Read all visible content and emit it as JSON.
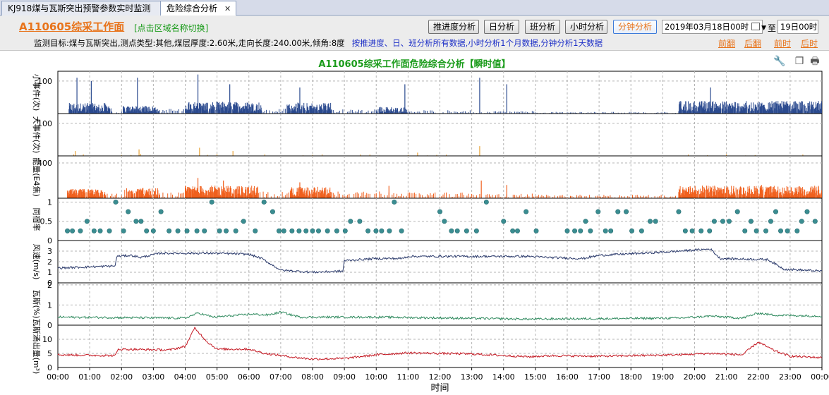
{
  "tabs": [
    {
      "label": "KJ918煤与瓦斯突出预警参数实时监测",
      "active": false
    },
    {
      "label": "危险综合分析",
      "active": true,
      "close": "✕"
    }
  ],
  "header": {
    "face_title": "A110605综采工作面",
    "switch_hint": "[点击区域名称切换]",
    "info": "监测目标:煤与瓦斯突出,测点类型:其他,煤层厚度:2.60米,走向长度:240.00米,倾角:8度",
    "info_note": "按推进度、日、班分析所有数据,小时分析1个月数据,分钟分析1天数据",
    "buttons": [
      "推进度分析",
      "日分析",
      "班分析",
      "小时分析",
      "分钟分析"
    ],
    "active_button": "分钟分析",
    "date_from": "2019年03月18日00时",
    "to_label": "至",
    "date_to": "19日00时",
    "links": [
      "前翻",
      "后翻",
      "前时",
      "后时"
    ]
  },
  "chart_title": "A110605综采工作面危险综合分析【瞬时值】",
  "chart_data": {
    "type": "line",
    "xlabel": "时间",
    "x_ticks": [
      "00:00",
      "01:00",
      "02:00",
      "03:00",
      "04:00",
      "05:00",
      "06:00",
      "07:00",
      "08:00",
      "09:00",
      "10:00",
      "11:00",
      "12:00",
      "13:00",
      "14:00",
      "15:00",
      "16:00",
      "17:00",
      "18:00",
      "19:00",
      "20:00",
      "21:00",
      "22:00",
      "23:00",
      "00:00"
    ],
    "panels": [
      {
        "ylabel": "小事件(次)",
        "type": "bar",
        "ylim": [
          0,
          130
        ],
        "yticks": [
          100
        ],
        "color": "#2b4a8f",
        "segments": [
          [
            0.35,
            1.7,
            25,
            "dense"
          ],
          [
            1.7,
            2.05,
            5,
            "sparse"
          ],
          [
            2.05,
            3.2,
            18,
            "dense"
          ],
          [
            3.2,
            4.0,
            12,
            "sparse"
          ],
          [
            4.0,
            6.4,
            28,
            "dense"
          ],
          [
            6.4,
            7.2,
            12,
            "sparse"
          ],
          [
            7.2,
            8.6,
            26,
            "dense"
          ],
          [
            8.6,
            10.0,
            10,
            "sparse"
          ],
          [
            10.0,
            11.0,
            16,
            "dense"
          ],
          [
            11.0,
            13.0,
            8,
            "sparse"
          ],
          [
            13.0,
            15.0,
            6,
            "sparse"
          ],
          [
            15.0,
            19.5,
            4,
            "sparse"
          ],
          [
            19.5,
            24.0,
            30,
            "dense"
          ]
        ],
        "spikes": [
          [
            0.6,
            110
          ],
          [
            1.05,
            100
          ],
          [
            2.5,
            110
          ],
          [
            4.4,
            120
          ],
          [
            5.4,
            90
          ],
          [
            7.6,
            80
          ],
          [
            10.9,
            90
          ],
          [
            13.25,
            110
          ],
          [
            14.1,
            90
          ],
          [
            20.5,
            80
          ]
        ]
      },
      {
        "ylabel": "大事件(次)",
        "type": "bar",
        "ylim": [
          0,
          130
        ],
        "yticks": [
          100
        ],
        "color": "#e8a33a",
        "segments": [
          [
            0.5,
            2.0,
            4,
            "rare"
          ],
          [
            2.0,
            6.5,
            5,
            "rare"
          ],
          [
            6.5,
            11.0,
            4,
            "rare"
          ],
          [
            11.0,
            13.5,
            3,
            "rare"
          ],
          [
            19.5,
            24.0,
            4,
            "rare"
          ]
        ],
        "spikes": [
          [
            2.55,
            20
          ],
          [
            4.45,
            25
          ],
          [
            5.5,
            15
          ],
          [
            13.25,
            30
          ],
          [
            0.55,
            15
          ],
          [
            11.3,
            10
          ]
        ]
      },
      {
        "ylabel": "能量(E4焦)",
        "type": "bar",
        "ylim": [
          0,
          480
        ],
        "yticks": [
          400
        ],
        "color": "#f0601e",
        "segments": [
          [
            0.3,
            1.5,
            80,
            "dense"
          ],
          [
            1.5,
            2.1,
            40,
            "sparse"
          ],
          [
            2.1,
            3.2,
            90,
            "dense"
          ],
          [
            3.2,
            4.0,
            50,
            "sparse"
          ],
          [
            4.0,
            6.3,
            110,
            "dense"
          ],
          [
            6.3,
            7.3,
            60,
            "sparse"
          ],
          [
            7.3,
            8.6,
            100,
            "dense"
          ],
          [
            8.6,
            10.5,
            60,
            "sparse"
          ],
          [
            10.5,
            13.0,
            50,
            "sparse"
          ],
          [
            13.0,
            15.0,
            40,
            "sparse"
          ],
          [
            15.0,
            19.5,
            30,
            "sparse"
          ],
          [
            19.5,
            24.0,
            110,
            "dense"
          ]
        ],
        "spikes": [
          [
            4.4,
            230
          ],
          [
            5.2,
            200
          ],
          [
            7.6,
            180
          ],
          [
            13.3,
            200
          ],
          [
            14.1,
            150
          ],
          [
            10.4,
            140
          ],
          [
            22.1,
            150
          ]
        ]
      },
      {
        "ylabel": "同宿率",
        "type": "scatter",
        "ylim": [
          0,
          1.1
        ],
        "yticks": [
          0,
          0.5,
          1
        ],
        "color": "#3a8d91"
      },
      {
        "ylabel": "风速(m/s)",
        "type": "line",
        "ylim": [
          0,
          4
        ],
        "yticks": [
          0,
          1,
          2,
          3
        ],
        "color": "#2b3a6b",
        "knots": [
          [
            0,
            1.4
          ],
          [
            1.8,
            1.6
          ],
          [
            1.85,
            2.5
          ],
          [
            2.3,
            2.6
          ],
          [
            2.6,
            2.4
          ],
          [
            3.2,
            2.8
          ],
          [
            5.0,
            2.8
          ],
          [
            6.0,
            2.7
          ],
          [
            6.4,
            2.3
          ],
          [
            7.0,
            1.2
          ],
          [
            8.0,
            1.0
          ],
          [
            8.95,
            1.1
          ],
          [
            9.0,
            2.1
          ],
          [
            10.0,
            2.3
          ],
          [
            10.8,
            2.3
          ],
          [
            11.0,
            2.5
          ],
          [
            14.8,
            2.5
          ],
          [
            15.4,
            2.4
          ],
          [
            16.5,
            2.3
          ],
          [
            17.0,
            2.6
          ],
          [
            19.0,
            2.9
          ],
          [
            20.5,
            3.2
          ],
          [
            20.8,
            2.3
          ],
          [
            22.3,
            2.2
          ],
          [
            22.8,
            1.3
          ],
          [
            24.0,
            1.1
          ]
        ]
      },
      {
        "ylabel": "瓦斯(%)",
        "type": "line",
        "ylim": [
          0,
          2.1
        ],
        "yticks": [
          0,
          1,
          2
        ],
        "color": "#2f8a5e",
        "knots": [
          [
            0,
            0.4
          ],
          [
            4.0,
            0.35
          ],
          [
            4.4,
            0.6
          ],
          [
            4.9,
            0.4
          ],
          [
            6.1,
            0.55
          ],
          [
            6.6,
            0.5
          ],
          [
            7.0,
            0.65
          ],
          [
            7.6,
            0.4
          ],
          [
            10.0,
            0.4
          ],
          [
            14.8,
            0.3
          ],
          [
            19.5,
            0.35
          ],
          [
            20.5,
            0.45
          ],
          [
            21.5,
            0.35
          ],
          [
            22.0,
            0.6
          ],
          [
            22.5,
            0.5
          ],
          [
            24.0,
            0.45
          ]
        ]
      },
      {
        "ylabel": "瓦斯涌出量(m³)",
        "type": "line",
        "ylim": [
          0,
          15
        ],
        "yticks": [
          0,
          5,
          10
        ],
        "color": "#c41a24",
        "knots": [
          [
            0,
            4.5
          ],
          [
            1.8,
            4.2
          ],
          [
            1.9,
            6.5
          ],
          [
            3.5,
            6.2
          ],
          [
            4.0,
            7.5
          ],
          [
            4.3,
            14.0
          ],
          [
            4.7,
            9.0
          ],
          [
            5.0,
            6.5
          ],
          [
            6.0,
            6.5
          ],
          [
            6.5,
            5.0
          ],
          [
            7.5,
            3.5
          ],
          [
            8.0,
            3.0
          ],
          [
            9.0,
            3.2
          ],
          [
            10.0,
            4.5
          ],
          [
            11.0,
            5.2
          ],
          [
            13.0,
            4.8
          ],
          [
            14.8,
            3.8
          ],
          [
            15.5,
            4.2
          ],
          [
            17.0,
            4.0
          ],
          [
            19.5,
            4.5
          ],
          [
            20.5,
            5.0
          ],
          [
            21.5,
            4.5
          ],
          [
            22.0,
            9.0
          ],
          [
            22.5,
            6.0
          ],
          [
            23.0,
            4.0
          ],
          [
            24.0,
            3.5
          ]
        ]
      }
    ]
  }
}
